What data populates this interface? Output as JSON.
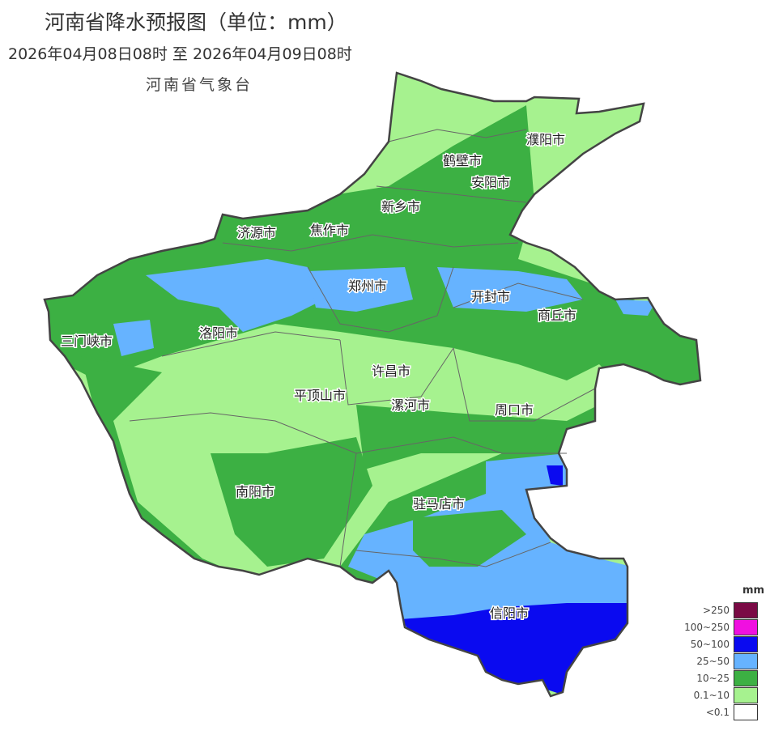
{
  "header": {
    "title": "河南省降水预报图（单位：mm）",
    "period": "2026年04月08日08时  至  2026年04月09日08时",
    "organization": "河南省气象台"
  },
  "cities": [
    "濮阳市",
    "鹤壁市",
    "安阳市",
    "新乡市",
    "济源市",
    "焦作市",
    "郑州市",
    "开封市",
    "商丘市",
    "三门峡市",
    "洛阳市",
    "许昌市",
    "平顶山市",
    "漯河市",
    "周口市",
    "南阳市",
    "驻马店市",
    "信阳市"
  ],
  "legend": {
    "unit": "mm",
    "items": [
      {
        "label": ">250",
        "color": "#7a0a45"
      },
      {
        "label": "100~250",
        "color": "#f010e0"
      },
      {
        "label": "50~100",
        "color": "#0a0af0"
      },
      {
        "label": "25~50",
        "color": "#66b3ff"
      },
      {
        "label": "10~25",
        "color": "#3cb043"
      },
      {
        "label": "0.1~10",
        "color": "#a6f28f"
      },
      {
        "label": "<0.1",
        "color": "#ffffff"
      }
    ]
  }
}
